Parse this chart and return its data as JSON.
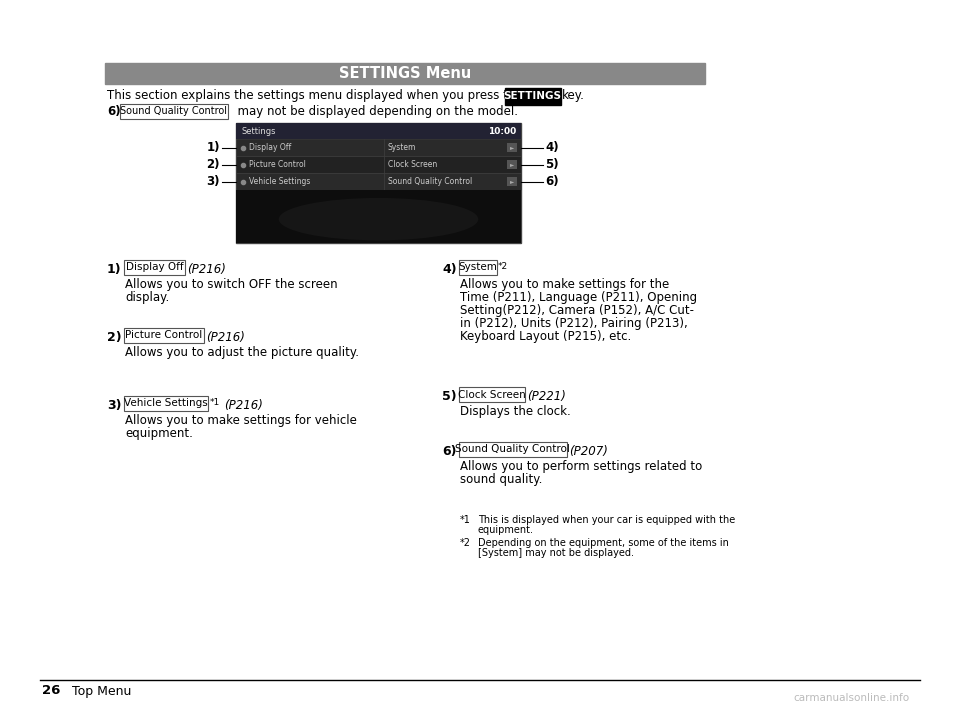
{
  "bg_color": "#ffffff",
  "page_width": 9.6,
  "page_height": 7.08,
  "header_text": "SETTINGS Menu",
  "header_bg": "#888888",
  "header_text_color": "#ffffff",
  "intro_text": "This section explains the settings menu displayed when you press the",
  "settings_key_label": "SETTINGS",
  "intro_text2": "key.",
  "note_prefix": "6)",
  "note_key": "Sound Quality Control",
  "note_suffix": "  may not be displayed depending on the model.",
  "screen_title": "Settings",
  "screen_time": "10:00",
  "screen_items_left": [
    "Display Off",
    "Picture Control",
    "Vehicle Settings"
  ],
  "screen_items_right": [
    "System",
    "Clock Screen",
    "Sound Quality Control"
  ],
  "screen_labels_left": [
    "1)",
    "2)",
    "3)"
  ],
  "screen_labels_right": [
    "4)",
    "5)",
    "6)"
  ],
  "footer_number": "26",
  "footer_text": "Top Menu",
  "watermark": "carmanualsonline.info",
  "items_left": [
    {
      "num": "1)",
      "key": "Display Off",
      "superscript": "",
      "page": "(P216)",
      "desc_lines": [
        "Allows you to switch OFF the screen",
        "display."
      ]
    },
    {
      "num": "2)",
      "key": "Picture Control",
      "superscript": "",
      "page": "(P216)",
      "desc_lines": [
        "Allows you to adjust the picture quality."
      ]
    },
    {
      "num": "3)",
      "key": "Vehicle Settings",
      "superscript": "*1",
      "page": "(P216)",
      "desc_lines": [
        "Allows you to make settings for vehicle",
        "equipment."
      ]
    }
  ],
  "items_right": [
    {
      "num": "4)",
      "key": "System",
      "superscript": "*2",
      "page": "",
      "desc_lines": [
        "Allows you to make settings for the",
        "Time (P211), Language (P211), Opening",
        "Setting(P212), Camera (P152), A/C Cut-",
        "in (P212), Units (P212), Pairing (P213),",
        "Keyboard Layout (P215), etc."
      ]
    },
    {
      "num": "5)",
      "key": "Clock Screen",
      "superscript": "",
      "page": "(P221)",
      "desc_lines": [
        "Displays the clock."
      ]
    },
    {
      "num": "6)",
      "key": "Sound Quality Control",
      "superscript": "",
      "page": "(P207)",
      "desc_lines": [
        "Allows you to perform settings related to",
        "sound quality."
      ]
    }
  ],
  "footnotes": [
    [
      "*1",
      "This is displayed when your car is equipped with the",
      "equipment."
    ],
    [
      "*2",
      "Depending on the equipment, some of the items in",
      "[System] may not be displayed."
    ]
  ]
}
